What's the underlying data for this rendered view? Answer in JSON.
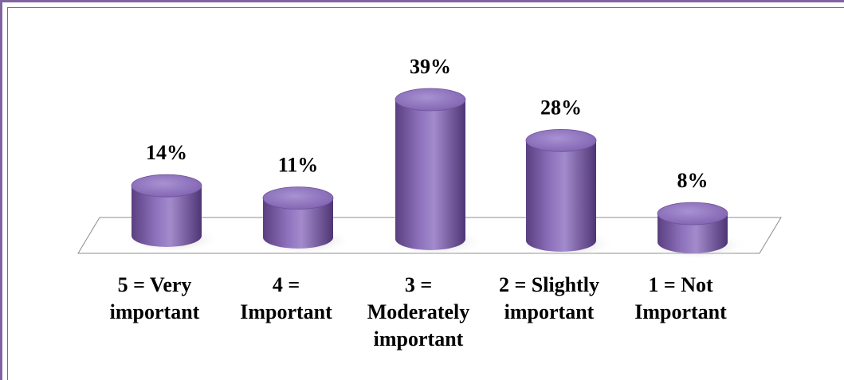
{
  "chart_data": {
    "type": "bar",
    "categories": [
      [
        "5 = Very",
        "important"
      ],
      [
        "4 =",
        "Important"
      ],
      [
        "3 =",
        "Moderately",
        "important"
      ],
      [
        "2 = Slightly",
        "important"
      ],
      [
        "1 = Not",
        "Important"
      ]
    ],
    "values": [
      14,
      11,
      39,
      28,
      8
    ],
    "data_labels": [
      "14%",
      "11%",
      "39%",
      "28%",
      "8%"
    ],
    "ylim": [
      0,
      39
    ],
    "grid": false,
    "legend": "none",
    "bar_color": "#8064a2",
    "frame_color": "#8064a2"
  }
}
